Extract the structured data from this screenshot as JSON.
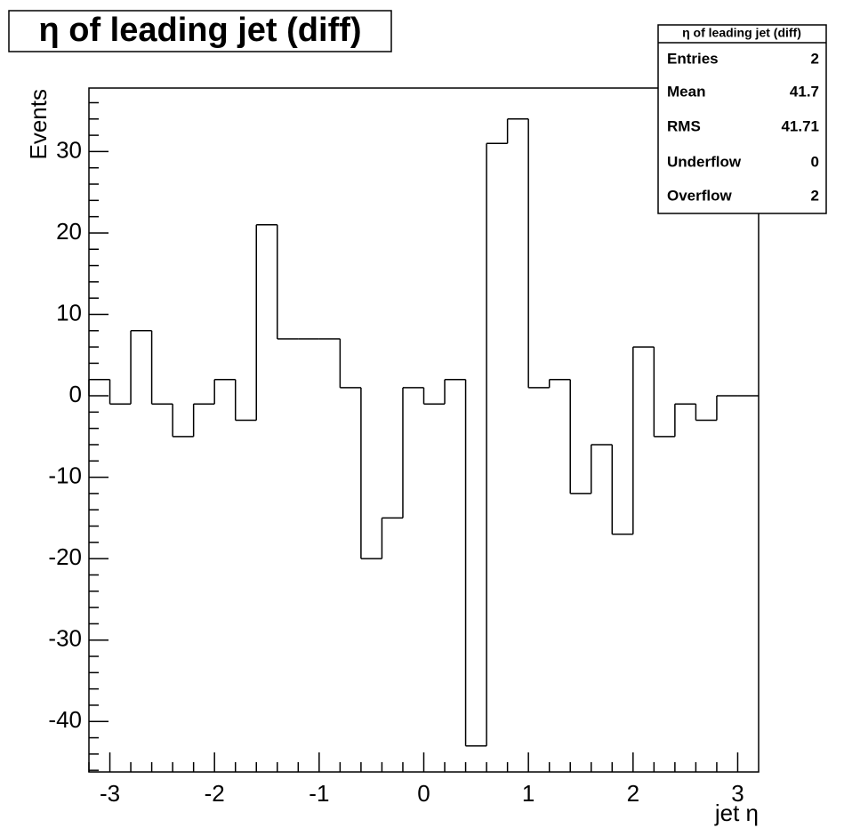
{
  "chart_data": {
    "type": "histogram",
    "title": "η of leading jet (diff)",
    "x_label": "jet η",
    "y_label": "Events",
    "bins": [
      -3.2,
      -3,
      -2.8,
      -2.6,
      -2.4,
      -2.2,
      -2,
      -1.8,
      -1.6,
      -1.4,
      -1.2,
      -1,
      -0.8,
      -0.6,
      -0.4,
      -0.2,
      0,
      0.2,
      0.4,
      0.6,
      0.8,
      1,
      1.2,
      1.4,
      1.6,
      1.8,
      2,
      2.2,
      2.4,
      2.6,
      2.8,
      3,
      3.2
    ],
    "counts": [
      2,
      -1,
      8,
      -1,
      -5,
      -1,
      2,
      -3,
      21,
      7,
      7,
      7,
      1,
      -20,
      -15,
      1,
      -1,
      2,
      -43,
      31,
      34,
      1,
      2,
      -12,
      -6,
      -17,
      6,
      -5,
      -1,
      -3,
      0,
      0
    ],
    "color": "#000000",
    "xlim": [
      -3.2,
      3.2
    ],
    "xticks": [
      -3,
      -2,
      -1,
      0,
      1,
      2,
      3
    ],
    "ylim": [
      -46.2,
      37.8
    ],
    "yticks": [
      -40,
      -30,
      -20,
      -10,
      0,
      10,
      20,
      30
    ],
    "stats": {
      "title": "η of leading jet (diff)",
      "rows": [
        {
          "label": "Entries",
          "value": 2
        },
        {
          "label": "Mean",
          "value": 41.7
        },
        {
          "label": "RMS",
          "value": 41.71
        },
        {
          "label": "Underflow",
          "value": 0
        },
        {
          "label": "Overflow",
          "value": 2
        }
      ]
    }
  }
}
